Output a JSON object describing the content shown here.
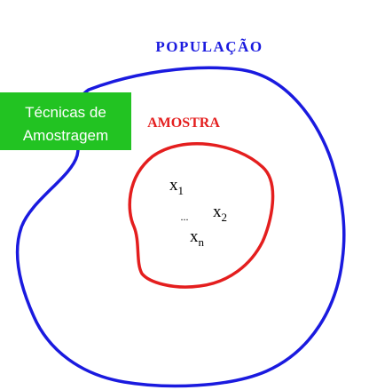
{
  "population": {
    "label": "POPULAÇÃO",
    "color": "#1a1adf"
  },
  "sample": {
    "label": "AMOSTRA",
    "color": "#e41e1e"
  },
  "techniques_box": {
    "line1": "Técnicas de",
    "line2": "Amostragem",
    "fill_color": "#22c322",
    "text_color": "#ffffff"
  },
  "elements": {
    "x1": {
      "base": "x",
      "sub": "1"
    },
    "x2": {
      "base": "x",
      "sub": "2"
    },
    "xn": {
      "base": "x",
      "sub": "n"
    },
    "ellipsis": "..."
  }
}
